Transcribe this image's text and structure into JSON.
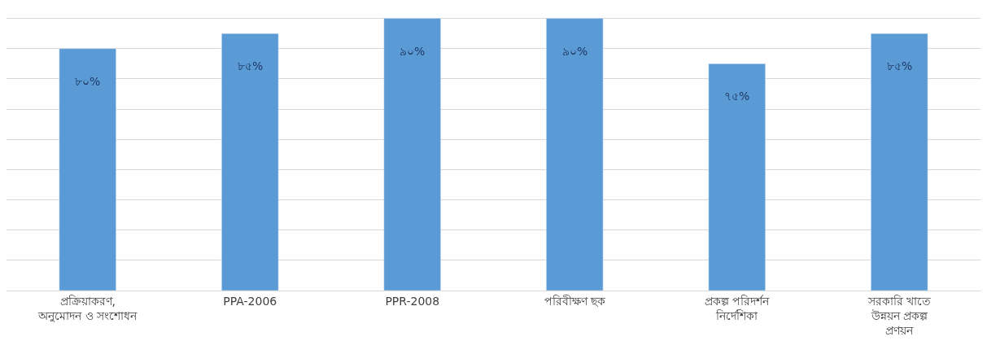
{
  "chart_data": {
    "type": "bar",
    "categories": [
      "প্রক্রিয়াকরণ, অনুমোদন ও সংশোধন",
      "PPA-2006",
      "PPR-2008",
      "পরিবীক্ষণ ছক",
      "প্রকল্প পরিদর্শন নির্দেশিকা",
      "সরকারি খাতে উন্নয়ন প্রকল্প প্রণয়ন"
    ],
    "values": [
      80,
      85,
      90,
      90,
      75,
      85
    ],
    "value_labels": [
      "৮০%",
      "৮৫%",
      "৯০%",
      "৯০%",
      "৭৫%",
      "৮৫%"
    ],
    "color": "#5b9bd5",
    "grid": "y",
    "tick_labels": "x"
  }
}
